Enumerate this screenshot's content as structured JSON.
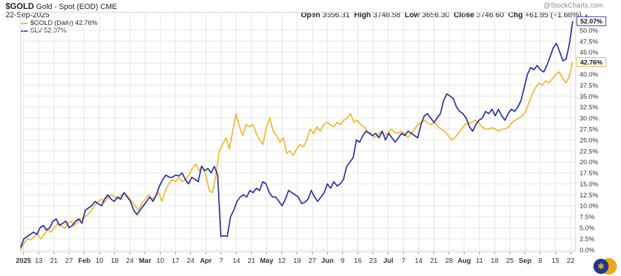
{
  "header": {
    "symbol": "$GOLD",
    "name": "Gold - Spot (EOD)",
    "exchange": "CME",
    "date": "22-Sep-2025",
    "watermark": "@StockCharts.com",
    "ohlc": {
      "open_label": "Open",
      "open": "3656.31",
      "high_label": "High",
      "high": "3748.58",
      "low_label": "Low",
      "low": "3656.30",
      "close_label": "Close",
      "close": "3746.60",
      "chg_label": "Chg",
      "chg": "+61.85 (+1.68%)"
    }
  },
  "legend": [
    {
      "label": "$GOLD (Daily) 42.76%",
      "color": "#f0b732"
    },
    {
      "label": "SLV 52.07%",
      "color": "#2b2fa6"
    }
  ],
  "colors": {
    "gold": "#f0b732",
    "slv": "#2b2fa6",
    "grid": "#e6e6e6"
  },
  "badges": {
    "slv": "52.07%",
    "gold": "42.76%"
  },
  "chart_data": {
    "type": "line",
    "ylim": [
      -0.5,
      52.5
    ],
    "y_ticks": [
      0,
      2.5,
      5,
      7.5,
      10,
      12.5,
      15,
      17.5,
      20,
      22.5,
      25,
      27.5,
      30,
      32.5,
      35,
      37.5,
      40,
      42.5,
      45,
      47.5,
      50
    ],
    "y_tick_labels": [
      "0.0%",
      "2.5%",
      "5.0%",
      "7.5%",
      "10.0%",
      "12.5%",
      "15.0%",
      "17.5%",
      "20.0%",
      "22.5%",
      "25.0%",
      "27.5%",
      "30.0%",
      "32.5%",
      "35.0%",
      "37.5%",
      "40.0%",
      "42.5%",
      "45.0%",
      "47.5%",
      "50.0%"
    ],
    "x_ticks": [
      {
        "label": "2025",
        "bold": true
      },
      {
        "label": "13"
      },
      {
        "label": "21"
      },
      {
        "label": "27"
      },
      {
        "label": "Feb",
        "bold": true
      },
      {
        "label": "10"
      },
      {
        "label": "18"
      },
      {
        "label": "24"
      },
      {
        "label": "Mar",
        "bold": true
      },
      {
        "label": "10"
      },
      {
        "label": "17"
      },
      {
        "label": "24"
      },
      {
        "label": "Apr",
        "bold": true
      },
      {
        "label": "7"
      },
      {
        "label": "14"
      },
      {
        "label": "21"
      },
      {
        "label": "May",
        "bold": true
      },
      {
        "label": "12"
      },
      {
        "label": "19"
      },
      {
        "label": "27"
      },
      {
        "label": "Jun",
        "bold": true
      },
      {
        "label": "9"
      },
      {
        "label": "16"
      },
      {
        "label": "23"
      },
      {
        "label": "Jul",
        "bold": true
      },
      {
        "label": "7"
      },
      {
        "label": "14"
      },
      {
        "label": "21"
      },
      {
        "label": "28"
      },
      {
        "label": "Aug",
        "bold": true
      },
      {
        "label": "11"
      },
      {
        "label": "18"
      },
      {
        "label": "25"
      },
      {
        "label": "Sep",
        "bold": true
      },
      {
        "label": "8"
      },
      {
        "label": "15"
      },
      {
        "label": "22"
      }
    ],
    "series": [
      {
        "name": "$GOLD (Daily)",
        "color": "#f0b732",
        "values": [
          0.0,
          1.5,
          2.5,
          2.2,
          3.0,
          3.5,
          2.5,
          3.5,
          4.5,
          4.0,
          5.0,
          6.0,
          5.5,
          4.8,
          6.0,
          6.5,
          5.5,
          6.5,
          7.0,
          7.5,
          8.0,
          9.0,
          10.0,
          11.0,
          11.5,
          10.8,
          12.0,
          12.5,
          12.0,
          11.5,
          12.5,
          12.8,
          12.0,
          11.0,
          10.0,
          9.0,
          10.5,
          11.5,
          12.5,
          11.5,
          12.0,
          13.0,
          11.0,
          13.5,
          15.0,
          16.0,
          15.5,
          16.5,
          15.5,
          16.0,
          17.0,
          18.5,
          19.5,
          18.0,
          19.0,
          17.0,
          13.5,
          13.0,
          17.0,
          22.5,
          24.0,
          25.5,
          23.0,
          27.0,
          31.0,
          28.0,
          26.0,
          28.5,
          28.0,
          28.5,
          26.5,
          25.0,
          24.0,
          28.0,
          30.0,
          27.0,
          26.0,
          24.5,
          25.5,
          22.0,
          22.5,
          21.5,
          23.0,
          24.0,
          23.5,
          25.0,
          27.5,
          26.5,
          28.0,
          27.0,
          28.5,
          29.0,
          28.5,
          28.0,
          29.0,
          28.5,
          29.5,
          30.0,
          31.0,
          29.0,
          29.5,
          28.5,
          28.0,
          27.0,
          26.5,
          25.5,
          26.0,
          27.0,
          26.0,
          26.5,
          27.5,
          26.8,
          26.5,
          27.0,
          26.5,
          25.5,
          26.5,
          27.5,
          28.5,
          29.0,
          29.5,
          28.8,
          28.5,
          29.0,
          28.0,
          27.5,
          27.0,
          26.0,
          25.0,
          25.5,
          26.5,
          27.5,
          28.5,
          28.8,
          29.0,
          29.5,
          29.0,
          28.0,
          27.5,
          27.5,
          27.8,
          27.5,
          27.0,
          27.5,
          27.5,
          28.0,
          29.0,
          29.5,
          30.0,
          30.5,
          31.5,
          33.5,
          35.5,
          37.0,
          38.0,
          37.5,
          38.5,
          38.0,
          39.0,
          40.0,
          40.5,
          39.0,
          38.0,
          39.5,
          42.76
        ]
      },
      {
        "name": "SLV",
        "color": "#2b2fa6",
        "values": [
          0.5,
          2.5,
          3.0,
          3.5,
          4.0,
          3.5,
          5.0,
          5.5,
          4.5,
          5.0,
          6.5,
          7.0,
          5.5,
          6.0,
          6.5,
          5.0,
          5.5,
          6.5,
          7.0,
          6.0,
          9.0,
          9.5,
          10.0,
          11.0,
          10.5,
          10.0,
          11.5,
          12.5,
          11.5,
          11.0,
          12.0,
          11.5,
          13.0,
          12.0,
          11.0,
          9.0,
          8.0,
          9.0,
          10.0,
          11.0,
          12.0,
          11.0,
          12.5,
          14.5,
          16.0,
          17.0,
          16.5,
          16.5,
          17.0,
          16.8,
          17.5,
          16.0,
          15.0,
          16.5,
          16.0,
          15.5,
          19.0,
          18.0,
          18.5,
          17.5,
          19.0,
          17.0,
          3.0,
          3.2,
          3.0,
          7.5,
          9.0,
          11.0,
          12.0,
          12.5,
          12.0,
          13.5,
          13.0,
          14.0,
          13.5,
          15.5,
          15.0,
          13.0,
          12.0,
          12.0,
          11.0,
          10.0,
          11.5,
          13.5,
          13.0,
          12.5,
          12.0,
          10.5,
          10.8,
          11.5,
          13.5,
          12.0,
          11.0,
          12.0,
          13.0,
          15.0,
          14.0,
          15.5,
          14.5,
          15.0,
          16.0,
          19.0,
          20.0,
          21.0,
          25.0,
          24.5,
          26.0,
          27.0,
          26.5,
          26.0,
          26.5,
          25.5,
          27.0,
          25.0,
          26.5,
          25.5,
          24.5,
          25.5,
          26.5,
          26.0,
          27.0,
          26.5,
          26.0,
          25.5,
          28.5,
          30.5,
          31.0,
          30.0,
          29.0,
          30.0,
          31.0,
          34.0,
          35.5,
          35.0,
          34.5,
          32.5,
          31.5,
          31.0,
          30.0,
          28.0,
          27.0,
          28.5,
          29.5,
          30.0,
          31.5,
          31.0,
          32.0,
          30.5,
          32.0,
          30.5,
          29.5,
          31.0,
          32.0,
          31.5,
          32.5,
          34.0,
          37.0,
          40.0,
          41.5,
          41.0,
          42.0,
          41.0,
          40.5,
          42.0,
          44.0,
          46.0,
          47.0,
          45.0,
          43.0,
          43.5,
          47.0,
          52.07
        ]
      }
    ]
  }
}
